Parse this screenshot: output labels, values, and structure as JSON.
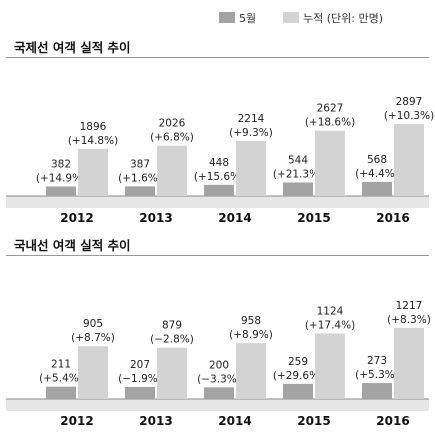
{
  "legend": {
    "monthly": {
      "label": "5월",
      "color": "#a3a3a3"
    },
    "cumulative": {
      "label": "누적 (단위: 만명)",
      "color": "#d3d3d3"
    }
  },
  "chart_data": [
    {
      "type": "bar",
      "title": "국제선 여객 실적 추이",
      "categories": [
        "2012",
        "2013",
        "2014",
        "2015",
        "2016"
      ],
      "series": [
        {
          "name": "5월",
          "values": [
            382,
            387,
            448,
            544,
            568
          ],
          "changes": [
            "(+14.9%)",
            "(+1.6%)",
            "(+15.6%)",
            "(+21.3%)",
            "(+4.4%)"
          ]
        },
        {
          "name": "누적 (단위: 만명)",
          "values": [
            1896,
            2026,
            2214,
            2627,
            2897
          ],
          "changes": [
            "(+14.8%)",
            "(+6.8%)",
            "(+9.3%)",
            "(+18.6%)",
            "(+10.3%)"
          ]
        }
      ],
      "ylim": [
        0,
        2897
      ],
      "grid": false,
      "legend": "top-right"
    },
    {
      "type": "bar",
      "title": "국내선 여객 실적 추이",
      "categories": [
        "2012",
        "2013",
        "2014",
        "2015",
        "2016"
      ],
      "series": [
        {
          "name": "5월",
          "values": [
            211,
            207,
            200,
            259,
            273
          ],
          "changes": [
            "(+5.4%)",
            "(−1.9%)",
            "(−3.3%)",
            "(+29.6%)",
            "(+5.3%)"
          ]
        },
        {
          "name": "누적 (단위: 만명)",
          "values": [
            905,
            879,
            958,
            1124,
            1217
          ],
          "changes": [
            "(+8.7%)",
            "(−2.8%)",
            "(+8.9%)",
            "(+17.4%)",
            "(+8.3%)"
          ]
        }
      ],
      "ylim": [
        0,
        1217
      ],
      "grid": false,
      "legend": "top-right"
    }
  ]
}
